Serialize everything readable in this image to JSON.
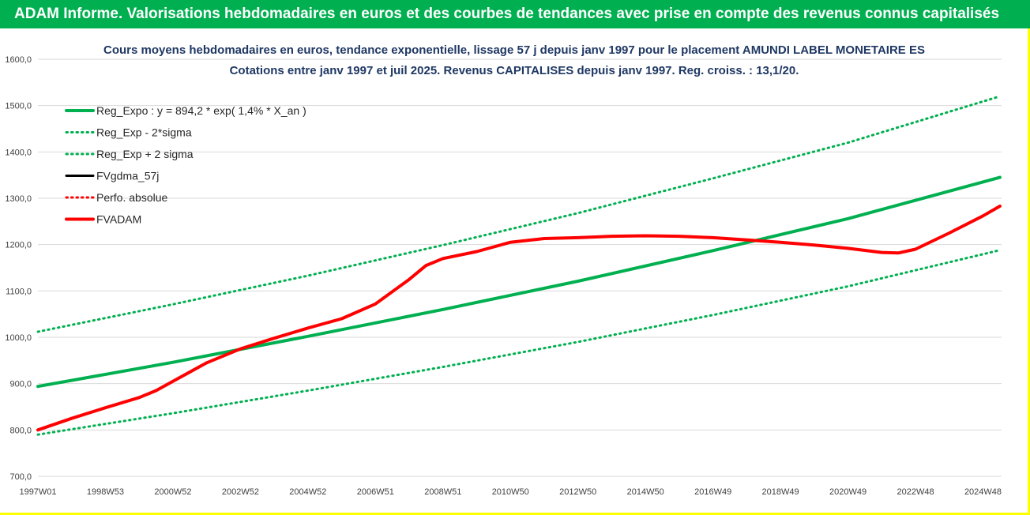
{
  "header": {
    "title": "ADAM Informe. Valorisations hebdomadaires en euros et des courbes de tendances avec prise en compte des revenus connus capitalisés"
  },
  "colors": {
    "header_bg": "#00b050",
    "frame_border": "#ffff00",
    "green": "#00b050",
    "red": "#ff0000",
    "black": "#000000"
  },
  "chart_data": {
    "type": "line",
    "title": "Cours moyens hebdomadaires en euros, tendance exponentielle, lissage 57 j depuis janv 1997 pour le placement AMUNDI LABEL MONETAIRE ES",
    "subtitle": "Cotations entre janv 1997 et juil 2025. Revenus CAPITALISES depuis janv 1997. Reg. croiss. : 13,1/20.",
    "xlabel": "",
    "ylabel": "",
    "x_range": [
      1997.0,
      2025.55
    ],
    "ylim": [
      700,
      1600
    ],
    "y_ticks": [
      "700,0",
      "800,0",
      "900,0",
      "1000,0",
      "1100,0",
      "1200,0",
      "1300,0",
      "1400,0",
      "1500,0",
      "1600,0"
    ],
    "x_ticks": [
      {
        "label": "1997W01",
        "x": 1997.0
      },
      {
        "label": "1998W53",
        "x": 1999.0
      },
      {
        "label": "2000W52",
        "x": 2001.0
      },
      {
        "label": "2002W52",
        "x": 2003.0
      },
      {
        "label": "2004W52",
        "x": 2005.0
      },
      {
        "label": "2006W51",
        "x": 2007.0
      },
      {
        "label": "2008W51",
        "x": 2009.0
      },
      {
        "label": "2010W50",
        "x": 2011.0
      },
      {
        "label": "2012W50",
        "x": 2013.0
      },
      {
        "label": "2014W50",
        "x": 2015.0
      },
      {
        "label": "2016W49",
        "x": 2017.0
      },
      {
        "label": "2018W49",
        "x": 2019.0
      },
      {
        "label": "2020W49",
        "x": 2021.0
      },
      {
        "label": "2022W48",
        "x": 2023.0
      },
      {
        "label": "2024W48",
        "x": 2025.0
      }
    ],
    "grid": "horizontal",
    "legend_position": "top-left",
    "series": [
      {
        "name": "Reg_Expo : y = 894,2 * exp( 1,4% *  X_an )",
        "color": "#00b050",
        "style": "solid",
        "width": 4,
        "x": [
          1997.0,
          2001.0,
          2005.0,
          2009.0,
          2013.0,
          2017.0,
          2021.0,
          2025.5
        ],
        "y": [
          894,
          946,
          1002,
          1060,
          1121,
          1187,
          1256,
          1345
        ]
      },
      {
        "name": "Reg_Exp - 2*sigma",
        "color": "#00b050",
        "style": "dotted",
        "width": 3,
        "x": [
          1997.0,
          2001.0,
          2005.0,
          2009.0,
          2013.0,
          2017.0,
          2021.0,
          2025.5
        ],
        "y": [
          790,
          836,
          885,
          936,
          990,
          1048,
          1110,
          1188
        ]
      },
      {
        "name": "Reg_Exp + 2 sigma",
        "color": "#00b050",
        "style": "dotted",
        "width": 3,
        "x": [
          1997.0,
          2001.0,
          2005.0,
          2009.0,
          2013.0,
          2017.0,
          2021.0,
          2025.5
        ],
        "y": [
          1012,
          1071,
          1133,
          1199,
          1268,
          1343,
          1420,
          1520
        ]
      },
      {
        "name": "FVgdma_57j",
        "color": "#000000",
        "style": "solid",
        "width": 3,
        "x": [],
        "y": []
      },
      {
        "name": "Perfo. absolue",
        "color": "#ff0000",
        "style": "dotted",
        "width": 3,
        "x": [],
        "y": []
      },
      {
        "name": "FVADAM",
        "color": "#ff0000",
        "style": "solid",
        "width": 4,
        "x": [
          1997.0,
          1998.0,
          1999.0,
          2000.0,
          2000.5,
          2001.0,
          2002.0,
          2003.0,
          2004.0,
          2005.0,
          2006.0,
          2007.0,
          2008.0,
          2008.5,
          2009.0,
          2010.0,
          2011.0,
          2012.0,
          2013.0,
          2014.0,
          2015.0,
          2016.0,
          2017.0,
          2018.0,
          2019.0,
          2020.0,
          2021.0,
          2022.0,
          2022.5,
          2023.0,
          2024.0,
          2025.0,
          2025.5
        ],
        "y": [
          800,
          825,
          848,
          870,
          885,
          905,
          945,
          975,
          998,
          1020,
          1040,
          1072,
          1125,
          1155,
          1170,
          1185,
          1205,
          1213,
          1215,
          1218,
          1219,
          1218,
          1215,
          1210,
          1205,
          1199,
          1192,
          1183,
          1182,
          1190,
          1225,
          1262,
          1283
        ]
      }
    ]
  }
}
